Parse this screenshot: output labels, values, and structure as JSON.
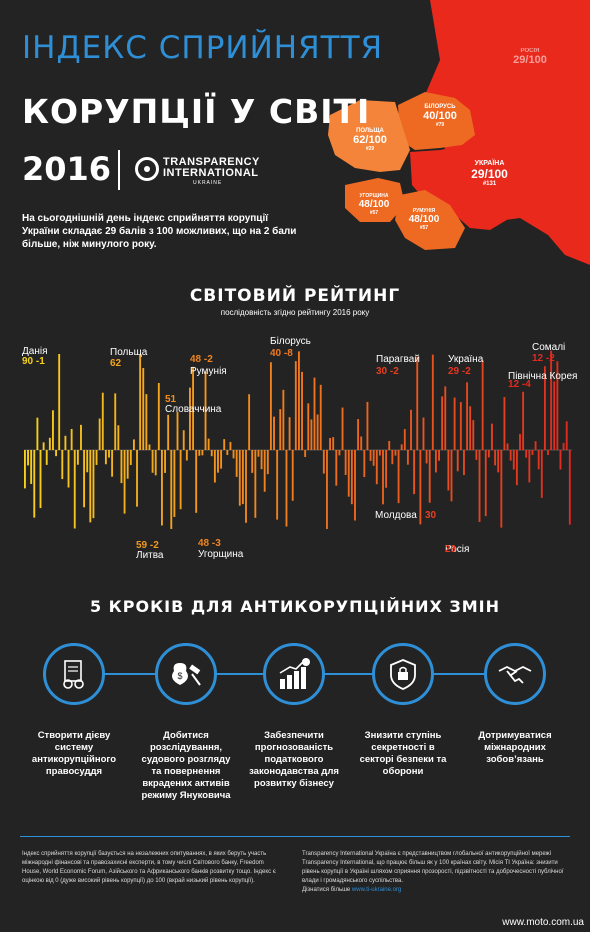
{
  "header": {
    "title_line1": "ІНДЕКС СПРИЙНЯТТЯ",
    "title_line2": "КОРУПЦІЇ У СВІТІ",
    "year": "2016",
    "org_line1": "TRANSPARENCY",
    "org_line2": "INTERNATIONAL",
    "org_line3": "UKRAINE",
    "intro": "На сьогоднішній день індекс сприйняття корупції України складає 29 балів з 100 можливих, що на 2 бали більше, ніж минулого року."
  },
  "map": {
    "colors": {
      "red": "#e8291c",
      "orange": "#ee6a22",
      "light_orange": "#f4843a"
    },
    "labels": [
      {
        "country": "ПОЛЬЩА",
        "score": "62/100",
        "rank": "#29"
      },
      {
        "country": "РОСІЯ",
        "score": "29/100",
        "rank": ""
      },
      {
        "country": "БІЛОРУСЬ",
        "score": "40/100",
        "rank": "#79"
      },
      {
        "country": "УКРАЇНА",
        "score": "29/100",
        "rank": "#131"
      },
      {
        "country": "УГОРЩИНА",
        "score": "48/100",
        "rank": "#57"
      },
      {
        "country": "РУМУНІЯ",
        "score": "48/100",
        "rank": "#57"
      }
    ]
  },
  "ranking": {
    "title": "СВІТОВИЙ РЕЙТИНГ",
    "subtitle": "послідовність згідно рейтингу 2016 року"
  },
  "chart_data": {
    "type": "bar",
    "description_axis": "diverging bar strip; bars above and below centre line in country rank order",
    "annotations": [
      {
        "country": "Данія",
        "value": 90,
        "change": "-1",
        "position": "top"
      },
      {
        "country": "Польща",
        "value": 62,
        "change": "",
        "position": "top"
      },
      {
        "country": "Литва",
        "value": 59,
        "change": "-2",
        "position": "bottom"
      },
      {
        "country": "Словаччина",
        "value": 51,
        "change": "",
        "position": "top"
      },
      {
        "country": "Румунія",
        "value": 48,
        "change": "-2",
        "position": "top"
      },
      {
        "country": "Угорщина",
        "value": 48,
        "change": "-3",
        "position": "bottom"
      },
      {
        "country": "Білорусь",
        "value": 40,
        "change": "-8",
        "position": "top"
      },
      {
        "country": "Молдова",
        "value": 30,
        "change": "",
        "position": "bottom"
      },
      {
        "country": "Парагвай",
        "value": 30,
        "change": "-2",
        "position": "top"
      },
      {
        "country": "Україна",
        "value": 29,
        "change": "-2",
        "position": "top"
      },
      {
        "country": "Росія",
        "value": 29,
        "change": "",
        "position": "bottom"
      },
      {
        "country": "Північна Корея",
        "value": 12,
        "change": "-4",
        "position": "top"
      },
      {
        "country": "Сомалі",
        "value": 12,
        "change": "-2",
        "position": "top"
      }
    ],
    "colors": {
      "high": "#f7d21c",
      "mid": "#f0791f",
      "low": "#e02a1f"
    }
  },
  "steps": {
    "title": "5 КРОКІВ ДЛЯ АНТИКОРУПЦІЙНИХ ЗМІН",
    "items": [
      {
        "icon": "document-handcuffs-icon",
        "text": "Створити дієву систему антикорупційного правосуддя"
      },
      {
        "icon": "money-gavel-icon",
        "text": "Добитися розслідування, судового розгляду та повернення вкрадених активів режиму Януковича"
      },
      {
        "icon": "growth-chart-icon",
        "text": "Забезпечити прогнозованість податкового законодавства для розвитку бізнесу"
      },
      {
        "icon": "shield-lock-icon",
        "text": "Знизити ступінь секретності в секторі безпеки та оборони"
      },
      {
        "icon": "handshake-icon",
        "text": "Дотримуватися міжнародних зобов’язань"
      }
    ]
  },
  "footer": {
    "left": "Індекс сприйняття корупції базується на незалежних опитуваннях, в яких беруть участь міжнародні фінансові та правозахисні експерти, в тому числі Світового банку, Freedom House, World Economic Forum, Азійського та Африканського банків розвитку тощо. Індекс є оцінкою від 0 (дуже високий рівень корупції) до 100 (вкрай низький рівень корупції).",
    "right": "Transparency International Україна є представництвом глобальної антикорупційної мережі Transparency International, що працює більш як у 100 країнах світу. Місія TI Україна: знизити рівень корупції в Україні шляхом сприяння прозорості, підзвітності та доброчесності публічної влади і громадянського суспільства.",
    "more_label": "Дізнатися більше",
    "more_link": "www.ti-ukraine.org",
    "watermark": "www.moto.com.ua"
  }
}
